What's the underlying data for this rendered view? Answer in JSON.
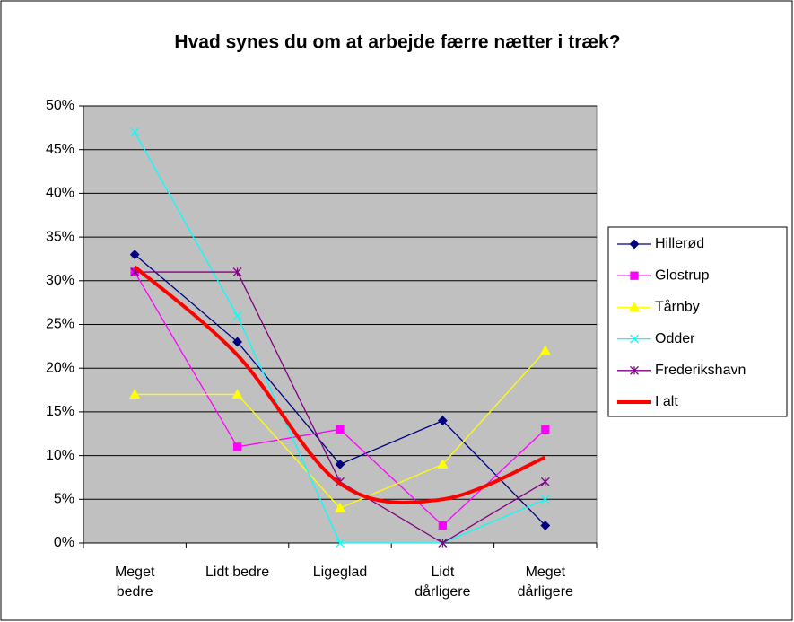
{
  "chart_data": {
    "type": "line",
    "title": "Hvad synes du om at arbejde færre nætter i træk?",
    "categories": [
      "Meget bedre",
      "Lidt bedre",
      "Ligeglad",
      "Lidt dårligere",
      "Meget dårligere"
    ],
    "series": [
      {
        "name": "Hillerød",
        "color": "#000080",
        "marker": "diamond",
        "values": [
          33,
          23,
          9,
          14,
          2
        ]
      },
      {
        "name": "Glostrup",
        "color": "#ff00ff",
        "marker": "square",
        "values": [
          31,
          11,
          13,
          2,
          13
        ]
      },
      {
        "name": "Tårnby",
        "color": "#ffff00",
        "marker": "triangle",
        "values": [
          17,
          17,
          4,
          9,
          22
        ]
      },
      {
        "name": "Odder",
        "color": "#00ffff",
        "marker": "x",
        "values": [
          47,
          26,
          0,
          0,
          5
        ]
      },
      {
        "name": "Frederikshavn",
        "color": "#800080",
        "marker": "star",
        "values": [
          31,
          31,
          7,
          0,
          7
        ]
      },
      {
        "name": "I alt",
        "color": "#ff0000",
        "marker": "none",
        "smooth": true,
        "line_width": 4,
        "values": [
          31.6,
          21.5,
          6.8,
          5,
          9.8
        ]
      }
    ],
    "ylim": [
      0,
      50
    ],
    "yticks": [
      {
        "value": 0,
        "label": "0%"
      },
      {
        "value": 5,
        "label": "5%"
      },
      {
        "value": 10,
        "label": "10%"
      },
      {
        "value": 15,
        "label": "15%"
      },
      {
        "value": 20,
        "label": "20%"
      },
      {
        "value": 25,
        "label": "25%"
      },
      {
        "value": 30,
        "label": "30%"
      },
      {
        "value": 35,
        "label": "35%"
      },
      {
        "value": 40,
        "label": "40%"
      },
      {
        "value": 45,
        "label": "45%"
      },
      {
        "value": 50,
        "label": "50%"
      }
    ],
    "grid": true,
    "legend": "right",
    "plot_background": "#c0c0c0"
  }
}
